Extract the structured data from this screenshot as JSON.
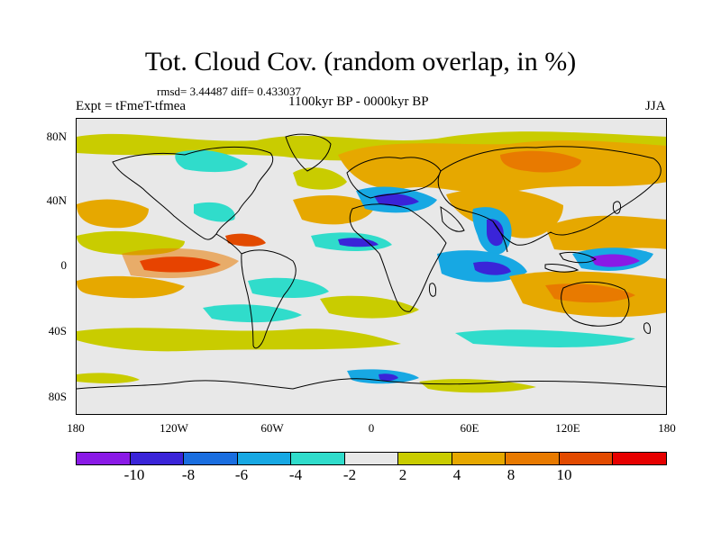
{
  "title": "Tot. Cloud Cov. (random overlap, in %)",
  "stats": "rmsd= 3.44487 diff= 0.433037",
  "expt": "Expt = tFmeT-tfmea",
  "period": "1100kyr BP - 0000kyr BP",
  "season": "JJA",
  "lat_ticks": [
    "80N",
    "40N",
    "0",
    "40S",
    "80S"
  ],
  "lon_ticks": [
    "180",
    "120W",
    "60W",
    "0",
    "60E",
    "120E",
    "180"
  ],
  "colorbar": {
    "colors": [
      "#8a1ae6",
      "#3a24d8",
      "#1a6ee0",
      "#17a8e3",
      "#30dccb",
      "#e8e8e8",
      "#c9cc00",
      "#e6a800",
      "#e87a00",
      "#e24a00",
      "#e60000"
    ],
    "labels": [
      "-10",
      "-8",
      "-6",
      "-4",
      "-2",
      "2",
      "4",
      "8",
      "10"
    ]
  },
  "map_background": "#e8e8e8"
}
